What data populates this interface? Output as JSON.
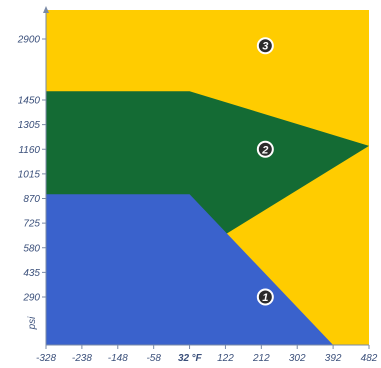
{
  "chart_data": {
    "type": "area",
    "title": "",
    "xlabel_unit": "°F",
    "ylabel": "psi",
    "xlim": [
      -328,
      482
    ],
    "ylim": [
      0,
      3000
    ],
    "x_ticks": [
      -328,
      -238,
      -148,
      -58,
      32,
      122,
      212,
      302,
      392,
      482
    ],
    "x_tick_labels": [
      "-328",
      "-238",
      "-148",
      "-58",
      "32",
      "122",
      "212",
      "302",
      "392",
      "482"
    ],
    "y_ticks": [
      290,
      435,
      580,
      725,
      870,
      1015,
      1160,
      1305,
      1450,
      2900
    ],
    "y_tick_labels": [
      "290",
      "435",
      "580",
      "725",
      "870",
      "1015",
      "1160",
      "1305",
      "1450",
      "2900"
    ],
    "highlight_x_tick": "32",
    "zones": [
      {
        "label": "1",
        "color": "#3a62cc",
        "badge_x": 212,
        "badge_y": 290,
        "boundary": [
          [
            -328,
            895
          ],
          [
            32,
            895
          ],
          [
            392,
            0
          ]
        ]
      },
      {
        "label": "2",
        "color": "#146b34",
        "badge_x": 212,
        "badge_y": 1160,
        "boundary": [
          [
            -328,
            1660
          ],
          [
            32,
            1660
          ],
          [
            482,
            1180
          ]
        ]
      },
      {
        "label": "3",
        "color": "#ffcc00",
        "badge_x": 212,
        "badge_y": 2740,
        "boundary": [
          [
            -328,
            3000
          ],
          [
            482,
            3000
          ]
        ]
      }
    ]
  }
}
